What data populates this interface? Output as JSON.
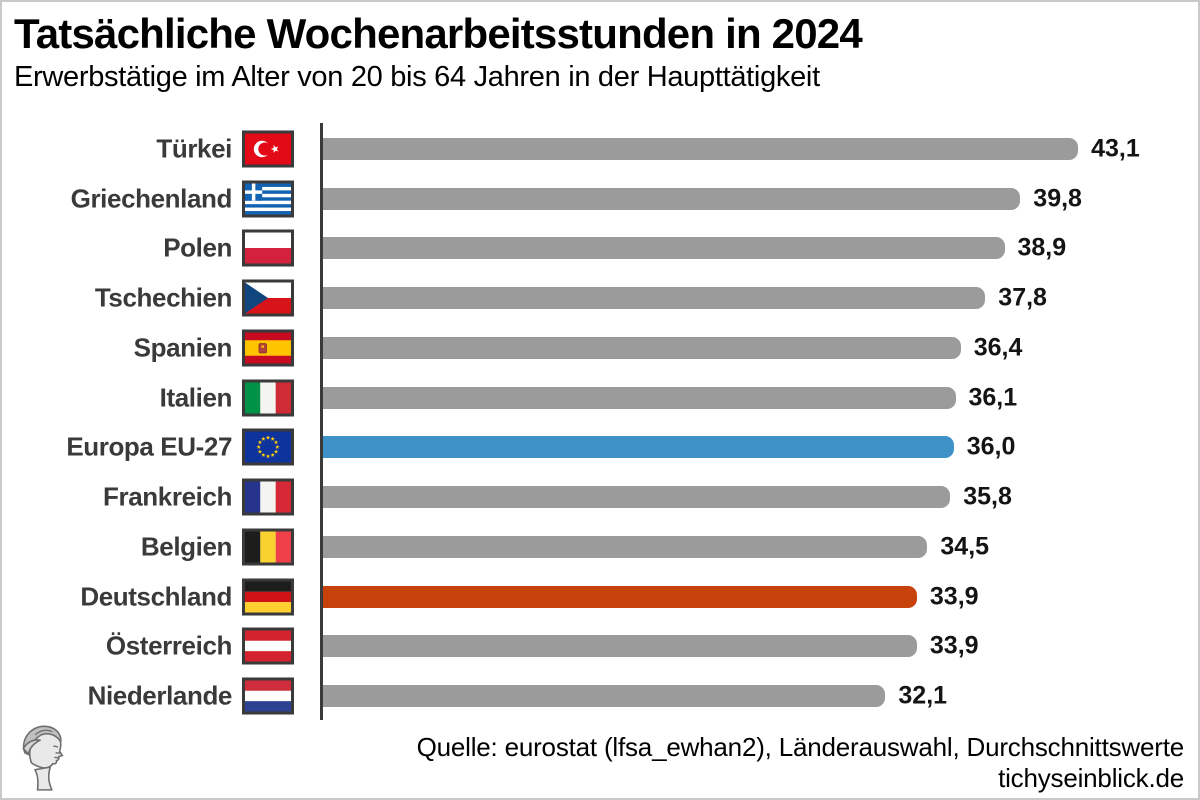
{
  "title": "Tatsächliche Wochenarbeitsstunden in 2024",
  "subtitle": "Erwerbstätige im Alter von 20 bis 64 Jahren in der Haupttätigkeit",
  "footer": {
    "source_line": "Quelle: eurostat (lfsa_ewhan2), Länderauswahl, Durchschnittswerte",
    "site_line": "tichyseinblick.de"
  },
  "colors": {
    "bar_default": "#9b9b9b",
    "bar_eu_highlight": "#3e92c8",
    "bar_de_highlight": "#c7420a",
    "axis": "#3a3a3a",
    "label": "#3a3a3a",
    "value": "#141414"
  },
  "chart_data": {
    "type": "bar",
    "orientation": "horizontal",
    "title": "Tatsächliche Wochenarbeitsstunden in 2024",
    "subtitle": "Erwerbstätige im Alter von 20 bis 64 Jahren in der Haupttätigkeit",
    "categories": [
      "Türkei",
      "Griechenland",
      "Polen",
      "Tschechien",
      "Spanien",
      "Italien",
      "Europa EU-27",
      "Frankreich",
      "Belgien",
      "Deutschland",
      "Österreich",
      "Niederlande"
    ],
    "values": [
      43.1,
      39.8,
      38.9,
      37.8,
      36.4,
      36.1,
      36.0,
      35.8,
      34.5,
      33.9,
      33.9,
      32.1
    ],
    "value_labels": [
      "43,1",
      "39,8",
      "38,9",
      "37,8",
      "36,4",
      "36,1",
      "36,0",
      "35,8",
      "34,5",
      "33,9",
      "33,9",
      "32,1"
    ],
    "flags": [
      "tr",
      "gr",
      "pl",
      "cz",
      "es",
      "it",
      "eu",
      "fr",
      "be",
      "de",
      "at",
      "nl"
    ],
    "bar_colors": [
      "gray",
      "gray",
      "gray",
      "gray",
      "gray",
      "gray",
      "blue",
      "gray",
      "gray",
      "orange",
      "gray",
      "gray"
    ],
    "xlim": [
      0,
      43.1
    ],
    "grid": false,
    "legend": false,
    "highlights": {
      "Europa EU-27": "blue",
      "Deutschland": "orange"
    }
  },
  "logo_name": "tichys-einblick-classical-head-logo"
}
